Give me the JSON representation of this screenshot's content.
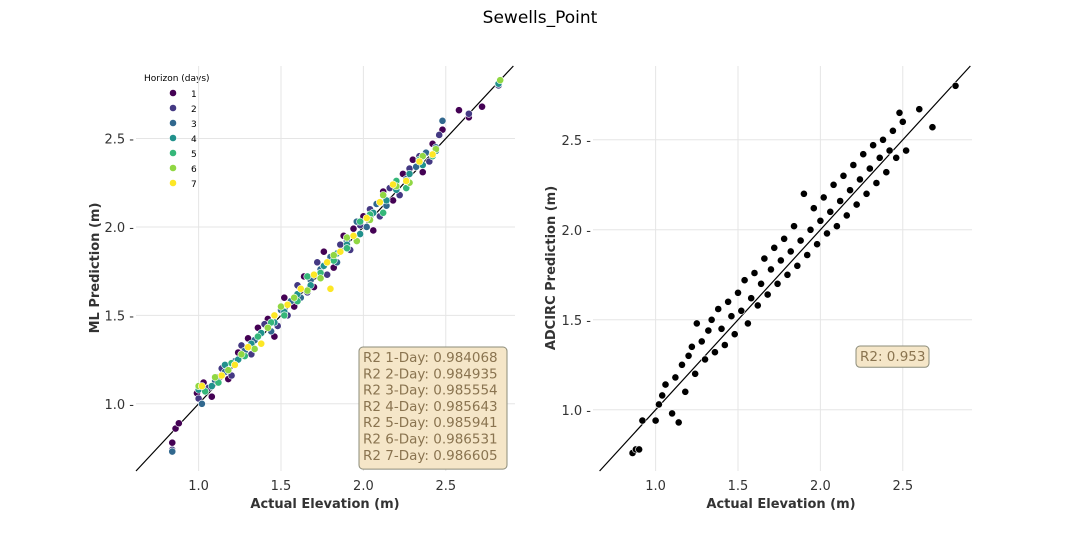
{
  "suptitle": "Sewells_Point",
  "colors": {
    "h1": "#440154",
    "h2": "#443983",
    "h3": "#31688e",
    "h4": "#21918c",
    "h5": "#35b779",
    "h6": "#90d743",
    "h7": "#fde725",
    "adcirc": "#000000",
    "grid": "#e5e5e5",
    "annotation_bg": "#f5e6c8",
    "annotation_border": "#8c8c7a",
    "annotation_text": "#8a7450"
  },
  "chart_data": [
    {
      "type": "scatter",
      "title": "",
      "xlabel": "Actual Elevation (m)",
      "ylabel": "ML Prediction (m)",
      "xlim": [
        0.62,
        2.92
      ],
      "ylim": [
        0.62,
        2.91
      ],
      "xticks": [
        "1.0",
        "1.5",
        "2.0",
        "2.5"
      ],
      "xtick_values": [
        1.0,
        1.5,
        2.0,
        2.5
      ],
      "yticks": [
        "1.0 -",
        "1.5 -",
        "2.0 -",
        "2.5 -"
      ],
      "ytick_values": [
        1.0,
        1.5,
        2.0,
        2.5
      ],
      "grid": true,
      "identity_line": true,
      "legend": {
        "title": "Horizon (days)",
        "placement": "top-left",
        "entries": [
          "1",
          "2",
          "3",
          "4",
          "5",
          "6",
          "7"
        ]
      },
      "annotation": {
        "placement": "bottom-right",
        "lines": [
          "R2 1-Day: 0.984068",
          "R2 2-Day: 0.984935",
          "R2 3-Day: 0.985554",
          "R2 4-Day: 0.985643",
          "R2 5-Day: 0.985941",
          "R2 6-Day: 0.986531",
          "R2 7-Day: 0.986605"
        ]
      },
      "series": [
        {
          "name": "1",
          "points": [
            [
              0.84,
              0.78
            ],
            [
              0.86,
              0.86
            ],
            [
              0.88,
              0.89
            ],
            [
              0.99,
              1.06
            ],
            [
              1.03,
              1.12
            ],
            [
              1.08,
              1.04
            ],
            [
              1.12,
              1.15
            ],
            [
              1.18,
              1.14
            ],
            [
              1.24,
              1.29
            ],
            [
              1.3,
              1.37
            ],
            [
              1.36,
              1.43
            ],
            [
              1.42,
              1.48
            ],
            [
              1.46,
              1.38
            ],
            [
              1.52,
              1.6
            ],
            [
              1.58,
              1.55
            ],
            [
              1.64,
              1.72
            ],
            [
              1.7,
              1.66
            ],
            [
              1.76,
              1.86
            ],
            [
              1.82,
              1.77
            ],
            [
              1.88,
              1.95
            ],
            [
              1.94,
              1.99
            ],
            [
              2.0,
              2.06
            ],
            [
              2.06,
              1.98
            ],
            [
              2.12,
              2.2
            ],
            [
              2.18,
              2.15
            ],
            [
              2.24,
              2.3
            ],
            [
              2.3,
              2.38
            ],
            [
              2.36,
              2.31
            ],
            [
              2.42,
              2.47
            ],
            [
              2.48,
              2.55
            ],
            [
              2.58,
              2.66
            ],
            [
              2.64,
              2.62
            ],
            [
              2.72,
              2.68
            ]
          ]
        },
        {
          "name": "2",
          "points": [
            [
              0.84,
              0.74
            ],
            [
              1.0,
              1.03
            ],
            [
              1.06,
              1.09
            ],
            [
              1.14,
              1.2
            ],
            [
              1.2,
              1.16
            ],
            [
              1.26,
              1.33
            ],
            [
              1.32,
              1.28
            ],
            [
              1.4,
              1.45
            ],
            [
              1.48,
              1.44
            ],
            [
              1.54,
              1.5
            ],
            [
              1.6,
              1.67
            ],
            [
              1.66,
              1.63
            ],
            [
              1.72,
              1.8
            ],
            [
              1.78,
              1.73
            ],
            [
              1.86,
              1.9
            ],
            [
              1.92,
              1.87
            ],
            [
              1.98,
              2.01
            ],
            [
              2.04,
              2.1
            ],
            [
              2.1,
              2.06
            ],
            [
              2.16,
              2.22
            ],
            [
              2.22,
              2.18
            ],
            [
              2.28,
              2.33
            ],
            [
              2.34,
              2.4
            ],
            [
              2.4,
              2.37
            ],
            [
              2.46,
              2.52
            ],
            [
              2.64,
              2.64
            ],
            [
              2.82,
              2.8
            ]
          ]
        },
        {
          "name": "3",
          "points": [
            [
              0.84,
              0.73
            ],
            [
              1.02,
              1.0
            ],
            [
              1.1,
              1.13
            ],
            [
              1.16,
              1.18
            ],
            [
              1.22,
              1.24
            ],
            [
              1.28,
              1.3
            ],
            [
              1.34,
              1.36
            ],
            [
              1.44,
              1.41
            ],
            [
              1.5,
              1.53
            ],
            [
              1.56,
              1.58
            ],
            [
              1.62,
              1.6
            ],
            [
              1.68,
              1.7
            ],
            [
              1.74,
              1.76
            ],
            [
              1.8,
              1.83
            ],
            [
              1.84,
              1.8
            ],
            [
              1.9,
              1.92
            ],
            [
              1.96,
              2.03
            ],
            [
              2.02,
              2.0
            ],
            [
              2.08,
              2.13
            ],
            [
              2.14,
              2.12
            ],
            [
              2.2,
              2.24
            ],
            [
              2.26,
              2.27
            ],
            [
              2.32,
              2.34
            ],
            [
              2.38,
              2.42
            ],
            [
              2.44,
              2.45
            ],
            [
              2.48,
              2.6
            ]
          ]
        },
        {
          "name": "4",
          "points": [
            [
              1.0,
              1.08
            ],
            [
              1.08,
              1.1
            ],
            [
              1.16,
              1.22
            ],
            [
              1.24,
              1.25
            ],
            [
              1.32,
              1.34
            ],
            [
              1.38,
              1.4
            ],
            [
              1.46,
              1.46
            ],
            [
              1.52,
              1.52
            ],
            [
              1.6,
              1.62
            ],
            [
              1.68,
              1.67
            ],
            [
              1.76,
              1.78
            ],
            [
              1.84,
              1.85
            ],
            [
              1.9,
              1.9
            ],
            [
              1.98,
              1.96
            ],
            [
              2.06,
              2.08
            ],
            [
              2.14,
              2.15
            ],
            [
              2.2,
              2.21
            ],
            [
              2.28,
              2.3
            ],
            [
              2.36,
              2.35
            ],
            [
              2.44,
              2.43
            ],
            [
              2.82,
              2.81
            ]
          ]
        },
        {
          "name": "5",
          "points": [
            [
              1.04,
              1.07
            ],
            [
              1.12,
              1.12
            ],
            [
              1.2,
              1.23
            ],
            [
              1.28,
              1.27
            ],
            [
              1.36,
              1.38
            ],
            [
              1.44,
              1.46
            ],
            [
              1.52,
              1.5
            ],
            [
              1.6,
              1.58
            ],
            [
              1.66,
              1.72
            ],
            [
              1.74,
              1.74
            ],
            [
              1.82,
              1.81
            ],
            [
              1.9,
              1.88
            ],
            [
              1.98,
              2.03
            ],
            [
              2.04,
              2.07
            ],
            [
              2.12,
              2.08
            ],
            [
              2.2,
              2.26
            ],
            [
              2.26,
              2.22
            ],
            [
              2.34,
              2.38
            ],
            [
              2.42,
              2.4
            ]
          ]
        },
        {
          "name": "6",
          "points": [
            [
              1.0,
              1.1
            ],
            [
              1.1,
              1.15
            ],
            [
              1.18,
              1.19
            ],
            [
              1.26,
              1.28
            ],
            [
              1.34,
              1.31
            ],
            [
              1.42,
              1.43
            ],
            [
              1.5,
              1.55
            ],
            [
              1.58,
              1.6
            ],
            [
              1.66,
              1.64
            ],
            [
              1.74,
              1.71
            ],
            [
              1.82,
              1.84
            ],
            [
              1.9,
              1.94
            ],
            [
              1.96,
              1.92
            ],
            [
              2.04,
              2.04
            ],
            [
              2.12,
              2.18
            ],
            [
              2.2,
              2.23
            ],
            [
              2.28,
              2.25
            ],
            [
              2.36,
              2.4
            ],
            [
              2.44,
              2.44
            ],
            [
              2.83,
              2.83
            ]
          ]
        },
        {
          "name": "7",
          "points": [
            [
              1.02,
              1.1
            ],
            [
              1.14,
              1.16
            ],
            [
              1.22,
              1.22
            ],
            [
              1.3,
              1.32
            ],
            [
              1.38,
              1.34
            ],
            [
              1.46,
              1.5
            ],
            [
              1.54,
              1.56
            ],
            [
              1.62,
              1.65
            ],
            [
              1.7,
              1.73
            ],
            [
              1.78,
              1.8
            ],
            [
              1.86,
              1.86
            ],
            [
              1.94,
              1.95
            ],
            [
              2.02,
              2.05
            ],
            [
              2.1,
              2.14
            ],
            [
              2.18,
              2.24
            ],
            [
              2.26,
              2.26
            ],
            [
              2.34,
              2.37
            ],
            [
              2.42,
              2.41
            ],
            [
              1.8,
              1.65
            ]
          ]
        }
      ]
    },
    {
      "type": "scatter",
      "title": "",
      "xlabel": "Actual Elevation (m)",
      "ylabel": "ADCIRC Prediction (m)",
      "xlim": [
        0.62,
        2.92
      ],
      "ylim": [
        0.66,
        2.91
      ],
      "xticks": [
        "1.0",
        "1.5",
        "2.0",
        "2.5"
      ],
      "xtick_values": [
        1.0,
        1.5,
        2.0,
        2.5
      ],
      "yticks": [
        "1.0 -",
        "1.5 -",
        "2.0 -",
        "2.5 -"
      ],
      "ytick_values": [
        1.0,
        1.5,
        2.0,
        2.5
      ],
      "grid": true,
      "identity_line": true,
      "annotation": {
        "placement": "right",
        "lines": [
          "R2: 0.953"
        ]
      },
      "series": [
        {
          "name": "",
          "points": [
            [
              0.86,
              0.76
            ],
            [
              0.88,
              0.78
            ],
            [
              0.9,
              0.78
            ],
            [
              0.92,
              0.94
            ],
            [
              1.0,
              0.94
            ],
            [
              1.02,
              1.03
            ],
            [
              1.04,
              1.08
            ],
            [
              1.06,
              1.14
            ],
            [
              1.1,
              0.98
            ],
            [
              1.12,
              1.18
            ],
            [
              1.14,
              0.93
            ],
            [
              1.16,
              1.25
            ],
            [
              1.18,
              1.1
            ],
            [
              1.2,
              1.3
            ],
            [
              1.22,
              1.35
            ],
            [
              1.24,
              1.2
            ],
            [
              1.25,
              1.48
            ],
            [
              1.28,
              1.38
            ],
            [
              1.3,
              1.28
            ],
            [
              1.32,
              1.44
            ],
            [
              1.34,
              1.5
            ],
            [
              1.36,
              1.32
            ],
            [
              1.38,
              1.56
            ],
            [
              1.4,
              1.45
            ],
            [
              1.42,
              1.36
            ],
            [
              1.44,
              1.6
            ],
            [
              1.46,
              1.52
            ],
            [
              1.48,
              1.42
            ],
            [
              1.5,
              1.65
            ],
            [
              1.52,
              1.55
            ],
            [
              1.54,
              1.72
            ],
            [
              1.56,
              1.48
            ],
            [
              1.58,
              1.62
            ],
            [
              1.6,
              1.76
            ],
            [
              1.62,
              1.58
            ],
            [
              1.64,
              1.7
            ],
            [
              1.66,
              1.84
            ],
            [
              1.68,
              1.64
            ],
            [
              1.7,
              1.78
            ],
            [
              1.72,
              1.9
            ],
            [
              1.74,
              1.7
            ],
            [
              1.76,
              1.83
            ],
            [
              1.78,
              1.95
            ],
            [
              1.8,
              1.75
            ],
            [
              1.82,
              1.88
            ],
            [
              1.84,
              2.02
            ],
            [
              1.86,
              1.8
            ],
            [
              1.88,
              1.94
            ],
            [
              1.9,
              2.2
            ],
            [
              1.92,
              1.86
            ],
            [
              1.94,
              2.0
            ],
            [
              1.96,
              2.12
            ],
            [
              1.98,
              1.92
            ],
            [
              2.0,
              2.05
            ],
            [
              2.02,
              2.18
            ],
            [
              2.04,
              1.98
            ],
            [
              2.06,
              2.1
            ],
            [
              2.08,
              2.25
            ],
            [
              2.1,
              2.02
            ],
            [
              2.12,
              2.16
            ],
            [
              2.14,
              2.3
            ],
            [
              2.16,
              2.08
            ],
            [
              2.18,
              2.22
            ],
            [
              2.2,
              2.36
            ],
            [
              2.22,
              2.14
            ],
            [
              2.24,
              2.28
            ],
            [
              2.26,
              2.42
            ],
            [
              2.28,
              2.2
            ],
            [
              2.3,
              2.34
            ],
            [
              2.32,
              2.47
            ],
            [
              2.34,
              2.26
            ],
            [
              2.36,
              2.4
            ],
            [
              2.38,
              2.5
            ],
            [
              2.4,
              2.32
            ],
            [
              2.42,
              2.44
            ],
            [
              2.44,
              2.55
            ],
            [
              2.46,
              2.4
            ],
            [
              2.48,
              2.65
            ],
            [
              2.5,
              2.6
            ],
            [
              2.52,
              2.44
            ],
            [
              2.6,
              2.67
            ],
            [
              2.68,
              2.57
            ],
            [
              2.82,
              2.8
            ]
          ]
        }
      ]
    }
  ]
}
